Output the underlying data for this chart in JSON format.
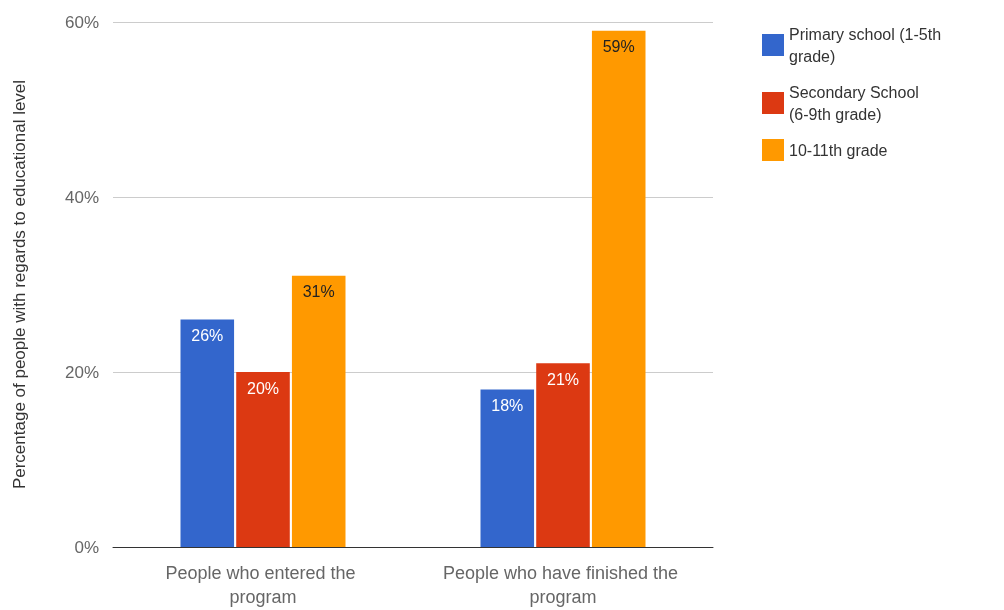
{
  "chart_data": {
    "type": "bar",
    "ylabel": "Percentage of people with regards to educational level",
    "categories": [
      "People who entered the program",
      "People who have finished the program"
    ],
    "series": [
      {
        "name": "Primary school (1-5th grade)",
        "color": "#3366cc",
        "values": [
          26,
          18
        ],
        "value_labels": [
          "26%",
          "18%"
        ]
      },
      {
        "name": "Secondary School (6-9th grade)",
        "color": "#dc3912",
        "values": [
          20,
          21
        ],
        "value_labels": [
          "20%",
          "21%"
        ]
      },
      {
        "name": "10-11th grade",
        "color": "#ff9900",
        "values": [
          31,
          59
        ],
        "value_labels": [
          "31%",
          "59%"
        ]
      }
    ],
    "ylim": [
      0,
      60
    ],
    "yticks": [
      {
        "value": 0,
        "label": "0%"
      },
      {
        "value": 20,
        "label": "20%"
      },
      {
        "value": 40,
        "label": "40%"
      },
      {
        "value": 60,
        "label": "60%"
      }
    ],
    "grid": "y",
    "legend": "right"
  }
}
